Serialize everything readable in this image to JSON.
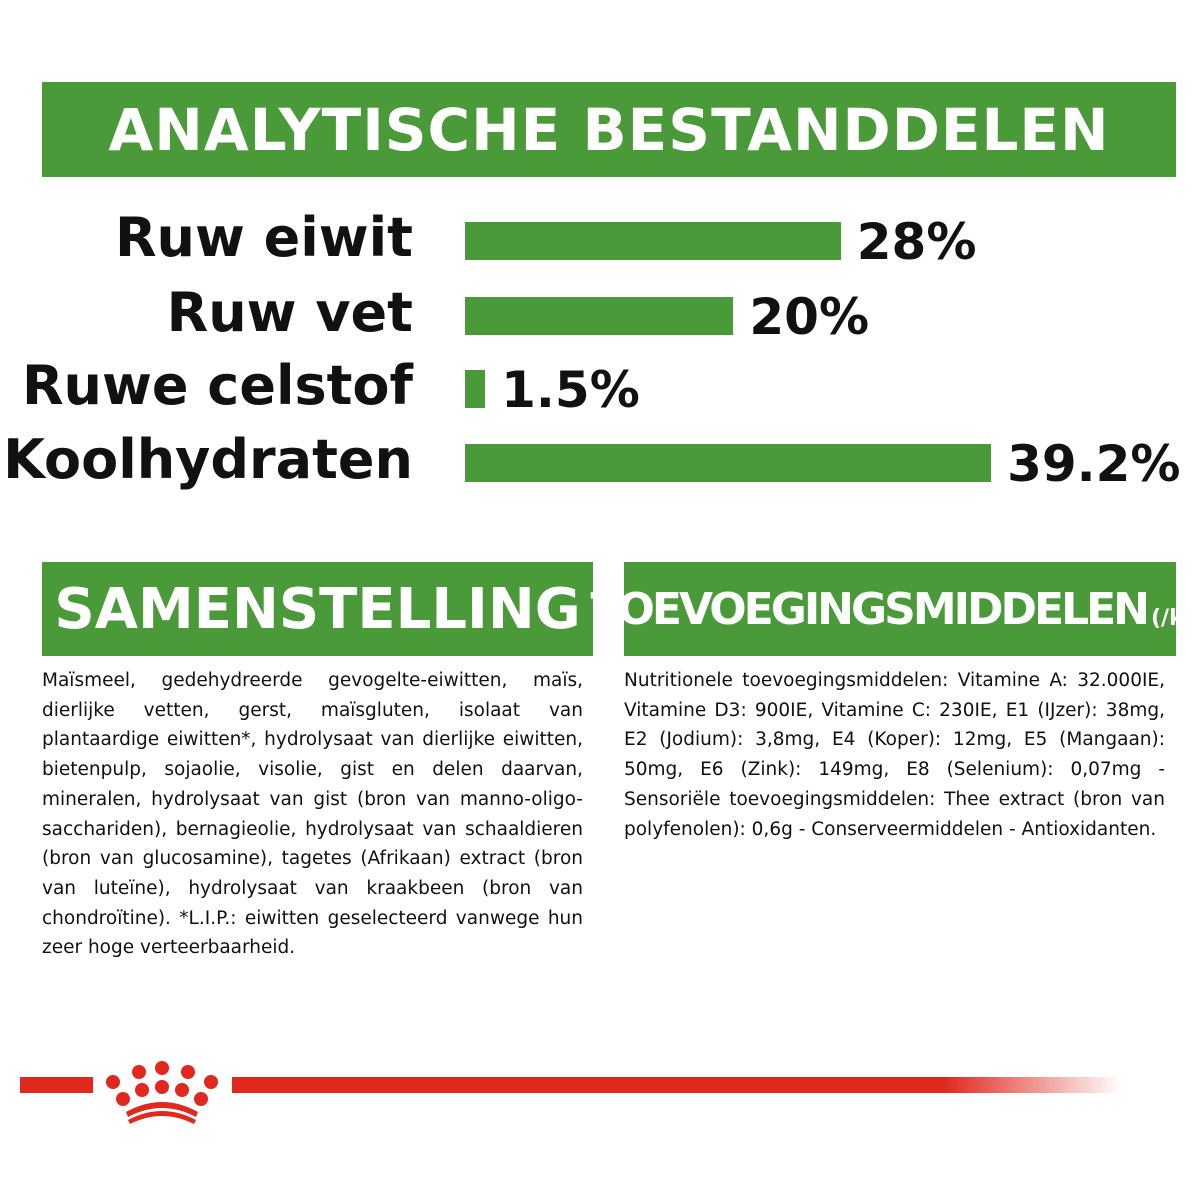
{
  "title": "ANALYTISCHE BESTANDDELEN",
  "chart_data": {
    "type": "bar",
    "orientation": "horizontal",
    "categories": [
      "Ruw eiwit",
      "Ruw vet",
      "Ruwe celstof",
      "Koolhydraten"
    ],
    "values": [
      28,
      20,
      1.5,
      39.2
    ],
    "value_labels": [
      "28%",
      "20%",
      "1.5%",
      "39.2%"
    ],
    "bar_color": "#4b9a3a"
  },
  "samenstelling": {
    "heading": "SAMENSTELLING",
    "text": "Maïsmeel, gedehydreerde gevogelte-eiwitten, maïs, dierlijke vetten, gerst, maïsgluten, isolaat van plantaardige eiwitten*, hydrolysaat van dierlijke eiwitten, bietenpulp, sojaolie, visolie, gist en delen daarvan, mineralen, hydrolysaat van gist (bron van manno-oligo-sacchariden), bernagieolie, hydrolysaat van schaaldieren (bron van glucosamine), tagetes (Afrikaan) extract (bron van luteïne), hydrolysaat van kraakbeen (bron van chondroïtine). *L.I.P.: eiwitten geselecteerd vanwege hun zeer hoge verteerbaarheid."
  },
  "toevoegingsmiddelen": {
    "heading": "TOEVOEGINGSMIDDELEN",
    "unit": "(/kg)",
    "text": "Nutritionele toevoegingsmiddelen: Vitamine A: 32.000IE, Vitamine D3: 900IE, Vitamine C: 230IE, E1 (IJzer): 38mg, E2 (Jodium): 3,8mg, E4 (Koper): 12mg, E5 (Mangaan): 50mg, E6 (Zink): 149mg, E8 (Selenium): 0,07mg - Sensoriële toevoegingsmiddelen: Thee extract (bron van polyfenolen): 0,6g - Conserveermiddelen - Antioxidanten."
  },
  "colors": {
    "green": "#4b9a3a",
    "brand_red": "#e0281e"
  },
  "logo": "royal-canin-crown"
}
